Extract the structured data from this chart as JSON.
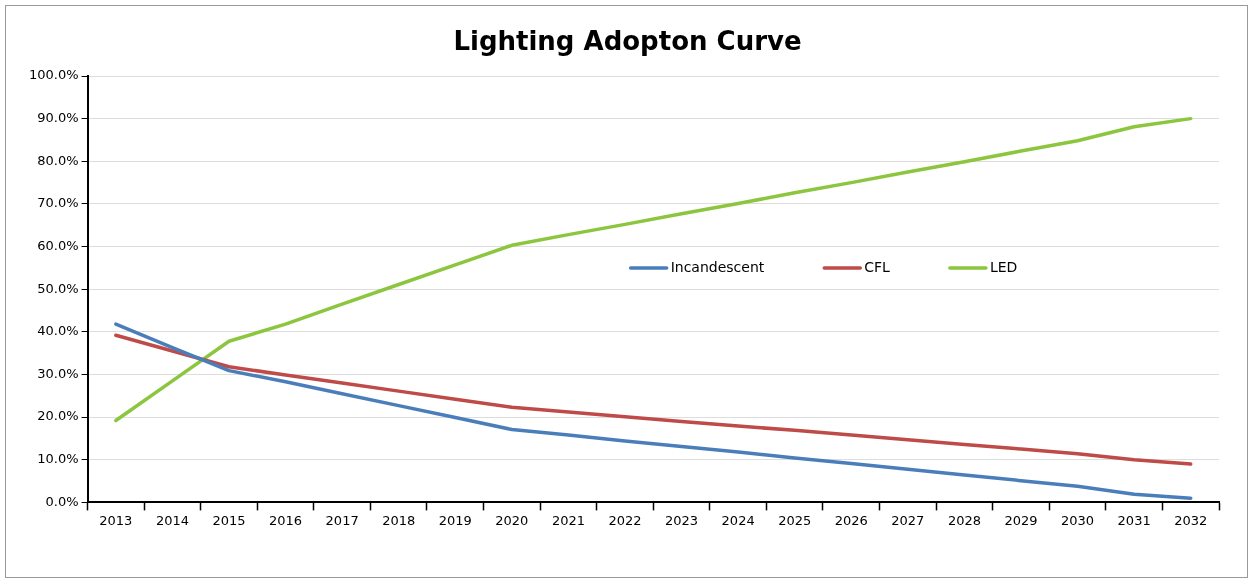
{
  "chart_data": {
    "type": "line",
    "title": "Lighting Adopton Curve",
    "categories": [
      "2013",
      "2014",
      "2015",
      "2016",
      "2017",
      "2018",
      "2019",
      "2020",
      "2021",
      "2022",
      "2023",
      "2024",
      "2025",
      "2026",
      "2027",
      "2028",
      "2029",
      "2030",
      "2031",
      "2032"
    ],
    "series": [
      {
        "name": "Incandescent",
        "color": "#4a7ebb",
        "values": [
          41.8,
          36.3,
          30.9,
          28.3,
          25.5,
          22.7,
          19.9,
          17.1,
          15.8,
          14.4,
          13.1,
          11.8,
          10.4,
          9.1,
          7.8,
          6.4,
          5.1,
          3.8,
          1.9,
          1.0
        ]
      },
      {
        "name": "CFL",
        "color": "#be4b48",
        "values": [
          39.2,
          35.5,
          31.8,
          29.9,
          28.0,
          26.1,
          24.2,
          22.3,
          21.2,
          20.1,
          19.0,
          17.9,
          16.9,
          15.8,
          14.7,
          13.6,
          12.5,
          11.4,
          10.0,
          9.0
        ]
      },
      {
        "name": "LED",
        "color": "#8cc63f",
        "values": [
          19.2,
          28.5,
          37.8,
          41.8,
          46.5,
          51.1,
          55.7,
          60.3,
          62.8,
          65.2,
          67.7,
          70.1,
          72.6,
          75.0,
          77.5,
          79.9,
          82.4,
          84.8,
          88.1,
          90.0
        ]
      }
    ],
    "ylim": [
      0,
      100
    ],
    "yticks": [
      {
        "value": 0,
        "label": "0.0%"
      },
      {
        "value": 10,
        "label": "10.0%"
      },
      {
        "value": 20,
        "label": "20.0%"
      },
      {
        "value": 30,
        "label": "30.0%"
      },
      {
        "value": 40,
        "label": "40.0%"
      },
      {
        "value": 50,
        "label": "50.0%"
      },
      {
        "value": 60,
        "label": "60.0%"
      },
      {
        "value": 70,
        "label": "70.0%"
      },
      {
        "value": 80,
        "label": "80.0%"
      },
      {
        "value": 90,
        "label": "90.0%"
      },
      {
        "value": 100,
        "label": "100.0%"
      }
    ],
    "grid": "y",
    "legend": "right",
    "marker": "none",
    "line_style": "solid"
  }
}
